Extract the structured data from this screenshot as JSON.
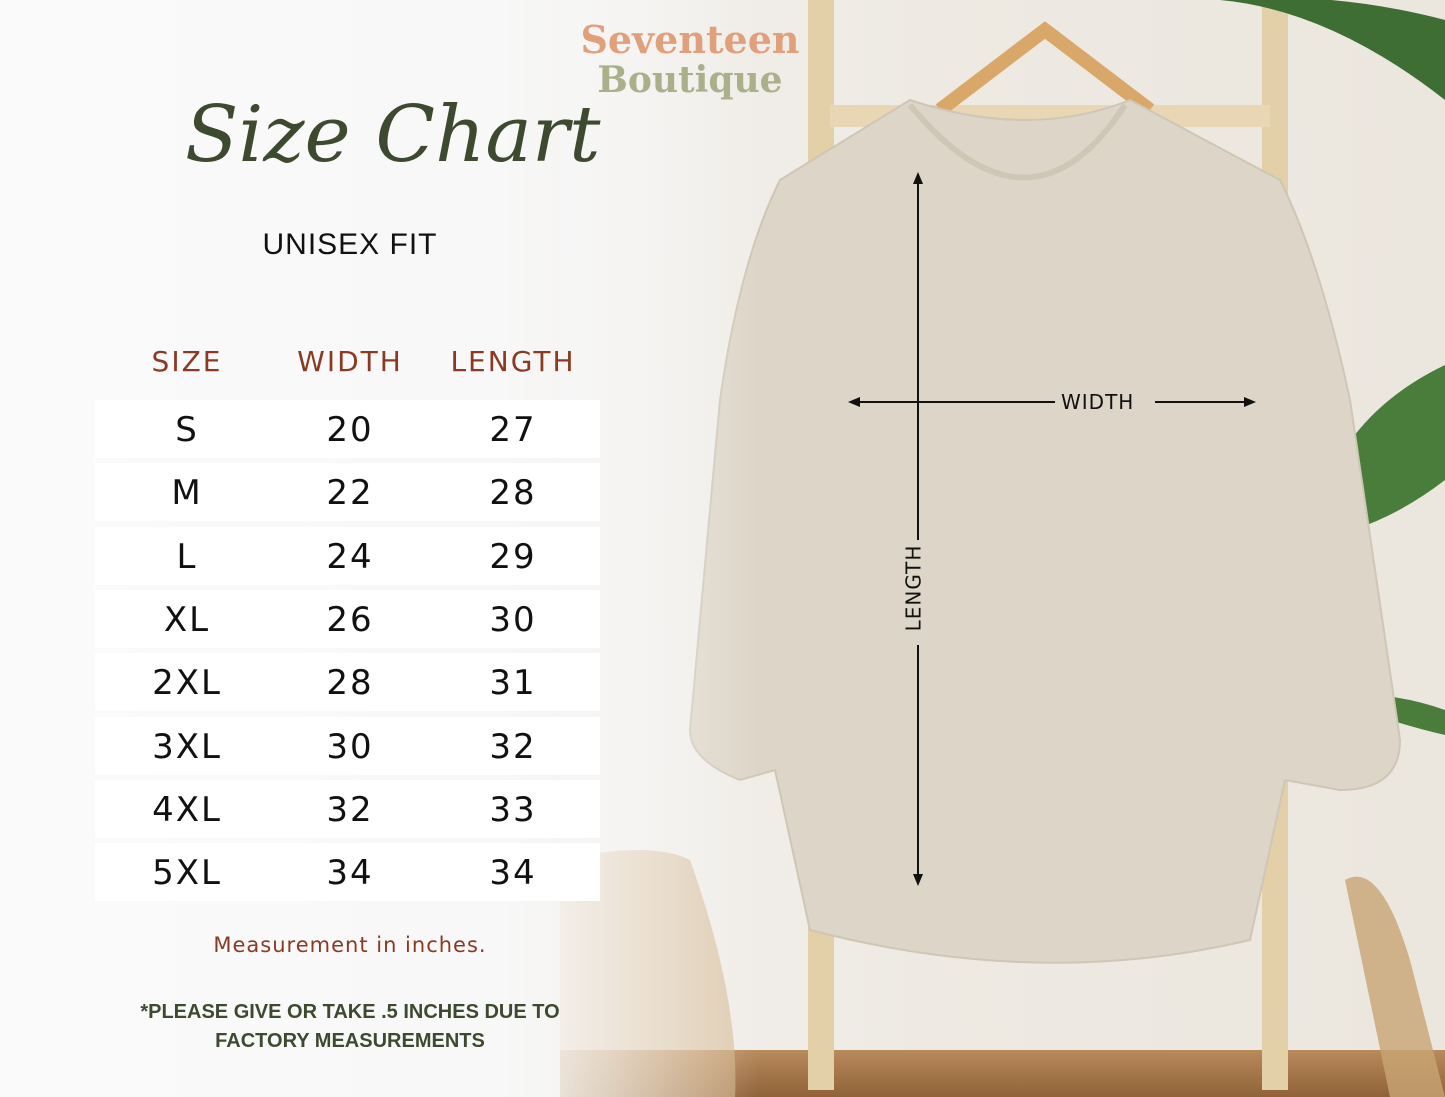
{
  "brand": {
    "line1": "Seventeen",
    "line2": "Boutique",
    "colors": [
      "#e0a07c",
      "#a9b08a",
      "#e8c4a8"
    ]
  },
  "title": "Size Chart",
  "subtitle": "UNISEX FIT",
  "table": {
    "headers": [
      "SIZE",
      "WIDTH",
      "LENGTH"
    ],
    "rows": [
      [
        "S",
        "20",
        "27"
      ],
      [
        "M",
        "22",
        "28"
      ],
      [
        "L",
        "24",
        "29"
      ],
      [
        "XL",
        "26",
        "30"
      ],
      [
        "2XL",
        "28",
        "31"
      ],
      [
        "3XL",
        "30",
        "32"
      ],
      [
        "4XL",
        "32",
        "33"
      ],
      [
        "5XL",
        "34",
        "34"
      ]
    ]
  },
  "note": "Measurement in inches.",
  "disclaimer": {
    "line1": "*PLEASE GIVE OR TAKE .5 INCHES DUE TO",
    "line2": "FACTORY MEASUREMENTS"
  },
  "diagram": {
    "width_label": "WIDTH",
    "length_label": "LENGTH"
  },
  "colors": {
    "header": "#8a3a22",
    "title": "#3e4a2f",
    "garment": "#ddd5c7"
  }
}
